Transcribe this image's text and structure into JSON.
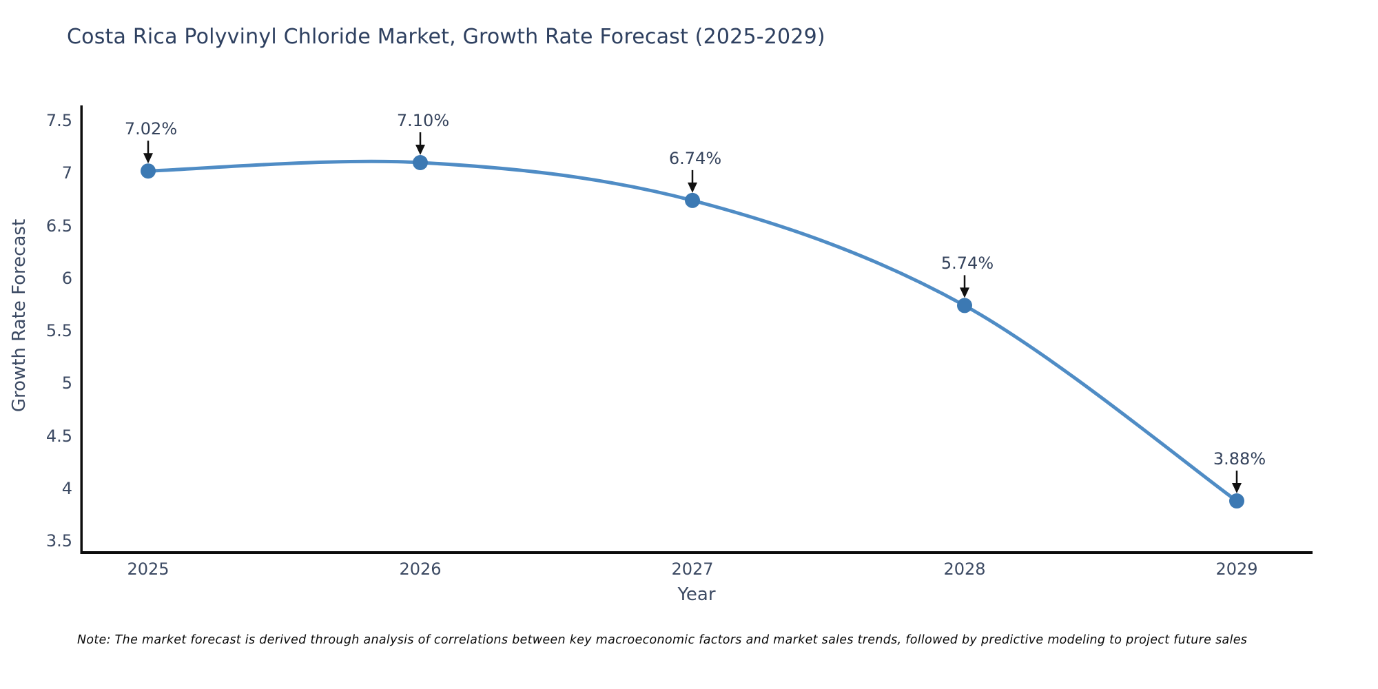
{
  "chart_data": {
    "type": "line",
    "title": "Costa Rica Polyvinyl Chloride Market, Growth Rate Forecast (2025-2029)",
    "xlabel": "Year",
    "ylabel": "Growth Rate Forecast",
    "categories": [
      "2025",
      "2026",
      "2027",
      "2028",
      "2029"
    ],
    "series": [
      {
        "name": "Growth Rate Forecast",
        "values": [
          7.02,
          7.1,
          6.74,
          5.74,
          3.88
        ]
      }
    ],
    "point_labels": [
      "7.02%",
      "7.10%",
      "6.74%",
      "5.74%",
      "3.88%"
    ],
    "ylim": [
      3.5,
      7.5
    ],
    "ytick_labels": [
      "7.5",
      "7",
      "6.5",
      "6",
      "5.5",
      "5",
      "4.5",
      "4",
      "3.5"
    ],
    "line_shape": "spline",
    "grid": false,
    "legend": "none",
    "colors": {
      "line": "#4f8cc5",
      "marker": "#3c79b3",
      "axis": "#0d0d0d",
      "arrow": "#111111",
      "text": "#35435c"
    }
  },
  "note": {
    "text": "Note: The market forecast is derived through analysis of correlations between key macroeconomic factors and market sales trends, followed by predictive modeling to project future sales"
  }
}
